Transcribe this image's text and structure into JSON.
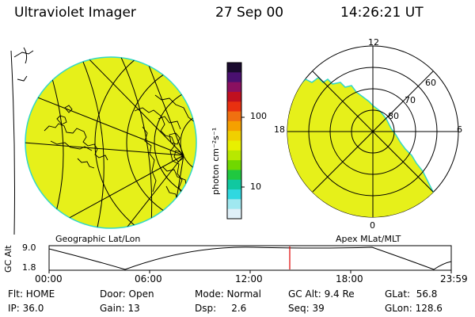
{
  "header": {
    "instrument": "Ultraviolet Imager",
    "date": "27 Sep 00",
    "time": "14:26:21 UT"
  },
  "left_panel": {
    "caption": "Geographic Lat/Lon"
  },
  "right_panel": {
    "caption": "Apex MLat/MLT",
    "mlt_labels": {
      "top": "12",
      "left": "18",
      "right": "6",
      "bottom": "0"
    },
    "mlat_labels": [
      "80",
      "70",
      "60"
    ]
  },
  "colorbar": {
    "unit_label": "photon cm⁻²s⁻¹",
    "tick_labels": [
      "100",
      "10"
    ],
    "colors": [
      "#1a0a2e",
      "#4a1070",
      "#8a1060",
      "#c01020",
      "#e83010",
      "#f07010",
      "#f5a000",
      "#f0d000",
      "#e8f000",
      "#b8e800",
      "#70d800",
      "#20c840",
      "#10c8a0",
      "#30d8e0",
      "#a0e8f0",
      "#e0f0f8"
    ]
  },
  "orbit_plot": {
    "y_axis_label": "GC Alt",
    "y_ticks": [
      "9.0",
      "1.8"
    ],
    "x_ticks": [
      "00:00",
      "06:00",
      "12:00",
      "18:00",
      "23:59"
    ]
  },
  "footer": {
    "row1": [
      "Flt: HOME",
      "Door: Open",
      "Mode: Normal",
      "GC Alt: 9.4 Re",
      "GLat:  56.8"
    ],
    "row2": [
      "IP: 36.0",
      "Gain: 13",
      "Dsp:     2.6",
      "Seq: 39",
      "GLon: 128.6"
    ]
  },
  "colors": {
    "emission_fill": "#e6f01a",
    "emission_edge": "#30d8c8",
    "grid_line": "#000000",
    "marker": "#e00000"
  }
}
